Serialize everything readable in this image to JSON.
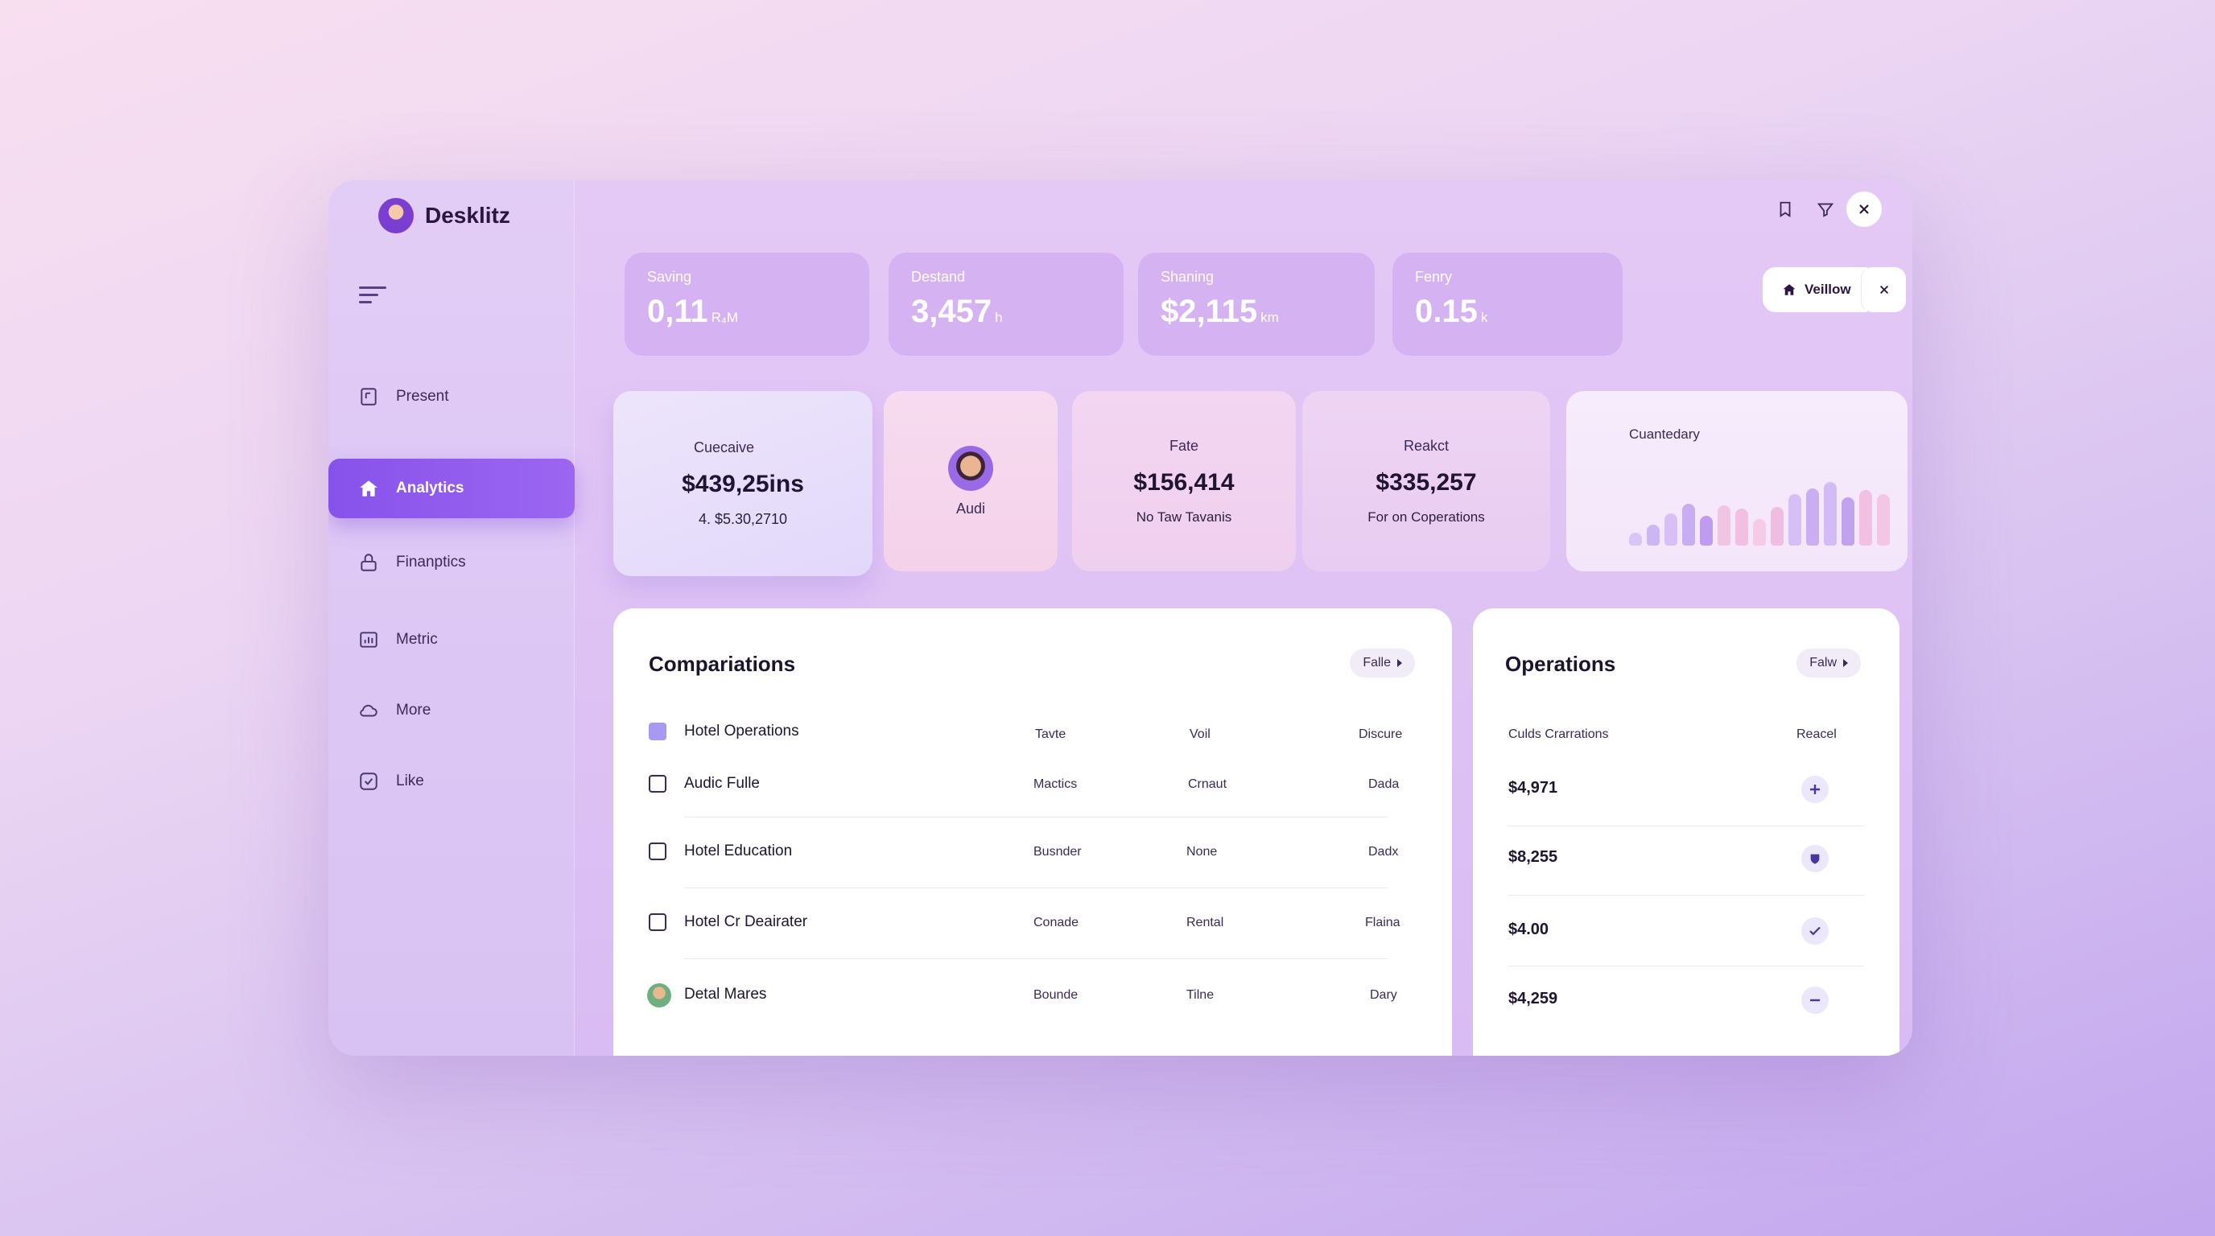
{
  "app": {
    "name": "Desklitz"
  },
  "sidebar": {
    "items": [
      {
        "label": "Present",
        "icon": "document-icon"
      },
      {
        "label": "Analytics",
        "icon": "home-icon",
        "active": true
      },
      {
        "label": "Finanptics",
        "icon": "lock-icon"
      },
      {
        "label": "Metric",
        "icon": "chart-icon"
      },
      {
        "label": "More",
        "icon": "cloud-icon"
      },
      {
        "label": "Like",
        "icon": "check-icon"
      }
    ]
  },
  "stats": [
    {
      "label": "Saving",
      "value": "0,11",
      "unit": "R₄M"
    },
    {
      "label": "Destand",
      "value": "3,457",
      "unit": "h"
    },
    {
      "label": "Shaning",
      "value": "$2,115",
      "unit": "km"
    },
    {
      "label": "Fenry",
      "value": "0.15",
      "unit": "k"
    }
  ],
  "chip": {
    "label": "Veillow"
  },
  "cards": {
    "cuecaive": {
      "label": "Cuecaive",
      "value": "$439,25ins",
      "sub": "4. $5.30,2710"
    },
    "audi": {
      "label": "Audi"
    },
    "fate": {
      "label": "Fate",
      "value": "$156,414",
      "sub": "No Taw Tavanis"
    },
    "reakct": {
      "label": "Reakct",
      "value": "$335,257",
      "sub": "For on Coperations"
    },
    "cuantedary": {
      "label": "Cuantedary"
    }
  },
  "chart_data": {
    "type": "bar",
    "title": "Cuantedary",
    "values": [
      0.15,
      0.25,
      0.38,
      0.5,
      0.36,
      0.48,
      0.44,
      0.32,
      0.46,
      0.62,
      0.68,
      0.76,
      0.58,
      0.66,
      0.62
    ],
    "colors": [
      "#d9c6f6",
      "#cdb6f4",
      "#d8c0f6",
      "#c8adf3",
      "#bf9cf0",
      "#f2c4e4",
      "#f0bfe2",
      "#f5cbe8",
      "#efbde2",
      "#d6bff5",
      "#c9aff2",
      "#d3bcf5",
      "#c1a2ef",
      "#f1c0e3",
      "#f4c6e6"
    ]
  },
  "comparisons": {
    "title": "Compariations",
    "filter": "Falle",
    "columns": [
      "Tavte",
      "Voil",
      "Discure"
    ],
    "rows": [
      {
        "name": "Hotel Operations",
        "c1": "",
        "c2": "",
        "c3": "",
        "checked": true
      },
      {
        "name": "Audic Fulle",
        "c1": "Mactics",
        "c2": "Crnaut",
        "c3": "Dada"
      },
      {
        "name": "Hotel Education",
        "c1": "Busnder",
        "c2": "None",
        "c3": "Dadx"
      },
      {
        "name": "Hotel Cr Deairater",
        "c1": "Conade",
        "c2": "Rental",
        "c3": "Flaina"
      },
      {
        "name": "Detal Mares",
        "c1": "Bounde",
        "c2": "Tilne",
        "c3": "Dary",
        "avatar": true
      }
    ]
  },
  "operations": {
    "title": "Operations",
    "filter": "Falw",
    "col1": "Culds Crarrations",
    "col2": "Reacel",
    "rows": [
      {
        "value": "$4,971",
        "icon": "plus-icon"
      },
      {
        "value": "$8,255",
        "icon": "shield-icon"
      },
      {
        "value": "$4.00",
        "icon": "check-icon"
      },
      {
        "value": "$4,259",
        "icon": "minus-icon"
      }
    ]
  }
}
